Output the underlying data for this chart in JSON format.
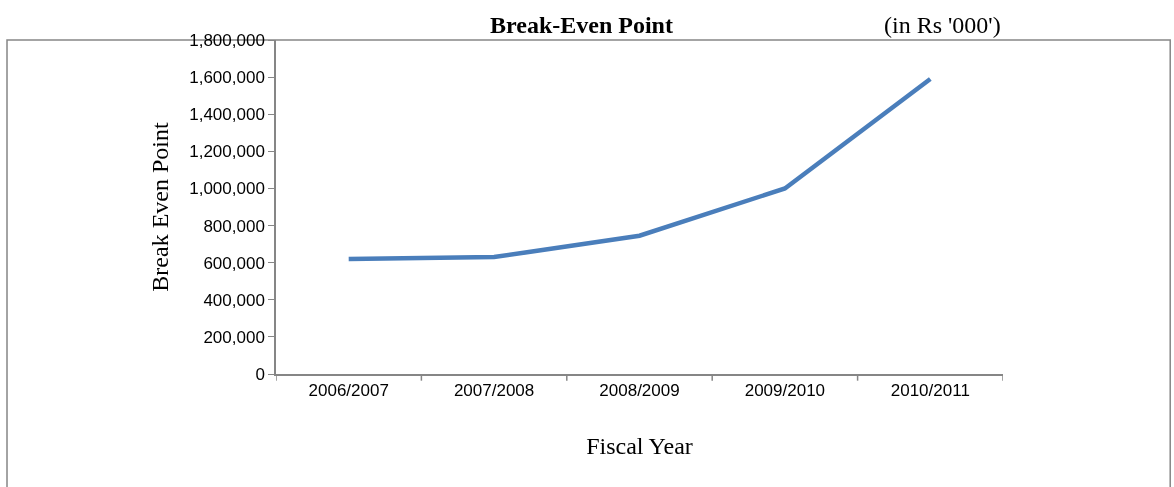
{
  "chart_data": {
    "type": "line",
    "title": "Break-Even Point",
    "subtitle": "(in Rs '000')",
    "xlabel": "Fiscal Year",
    "ylabel": "Break Even Point",
    "categories": [
      "2006/2007",
      "2007/2008",
      "2008/2009",
      "2009/2010",
      "2010/2011"
    ],
    "series": [
      {
        "color": "#4a7ebb",
        "values": [
          620000,
          630000,
          745000,
          1000000,
          1590000
        ]
      }
    ],
    "ylim": [
      0,
      1800000
    ],
    "yticks": [
      {
        "value": 0,
        "label": "0"
      },
      {
        "value": 200000,
        "label": "200,000"
      },
      {
        "value": 400000,
        "label": "400,000"
      },
      {
        "value": 600000,
        "label": "600,000"
      },
      {
        "value": 800000,
        "label": "800,000"
      },
      {
        "value": 1000000,
        "label": "1,000,000"
      },
      {
        "value": 1200000,
        "label": "1,200,000"
      },
      {
        "value": 1400000,
        "label": "1,400,000"
      },
      {
        "value": 1600000,
        "label": "1,600,000"
      },
      {
        "value": 1800000,
        "label": "1,800,000"
      }
    ],
    "grid": false,
    "marker": "none",
    "line_style": "solid"
  }
}
